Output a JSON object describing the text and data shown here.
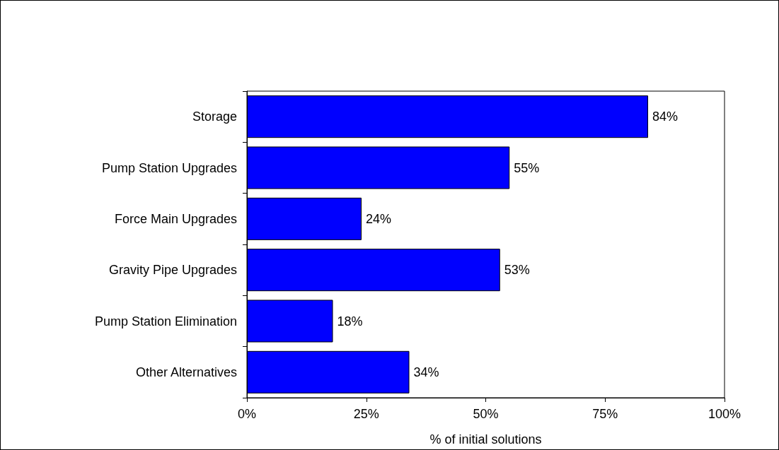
{
  "chart_data": {
    "type": "bar",
    "orientation": "horizontal",
    "xlabel": "% of initial solutions",
    "categories": [
      "Storage",
      "Pump Station Upgrades",
      "Force Main Upgrades",
      "Gravity Pipe Upgrades",
      "Pump Station Elimination",
      "Other Alternatives"
    ],
    "values": [
      84,
      55,
      24,
      53,
      18,
      34
    ],
    "value_labels": [
      "84%",
      "55%",
      "24%",
      "53%",
      "18%",
      "34%"
    ],
    "color": "#0000ff",
    "xlim": [
      0,
      100
    ],
    "xticks": [
      {
        "value": 0,
        "label": "0%"
      },
      {
        "value": 25,
        "label": "25%"
      },
      {
        "value": 50,
        "label": "50%"
      },
      {
        "value": 75,
        "label": "75%"
      },
      {
        "value": 100,
        "label": "100%"
      }
    ],
    "grid": false
  }
}
